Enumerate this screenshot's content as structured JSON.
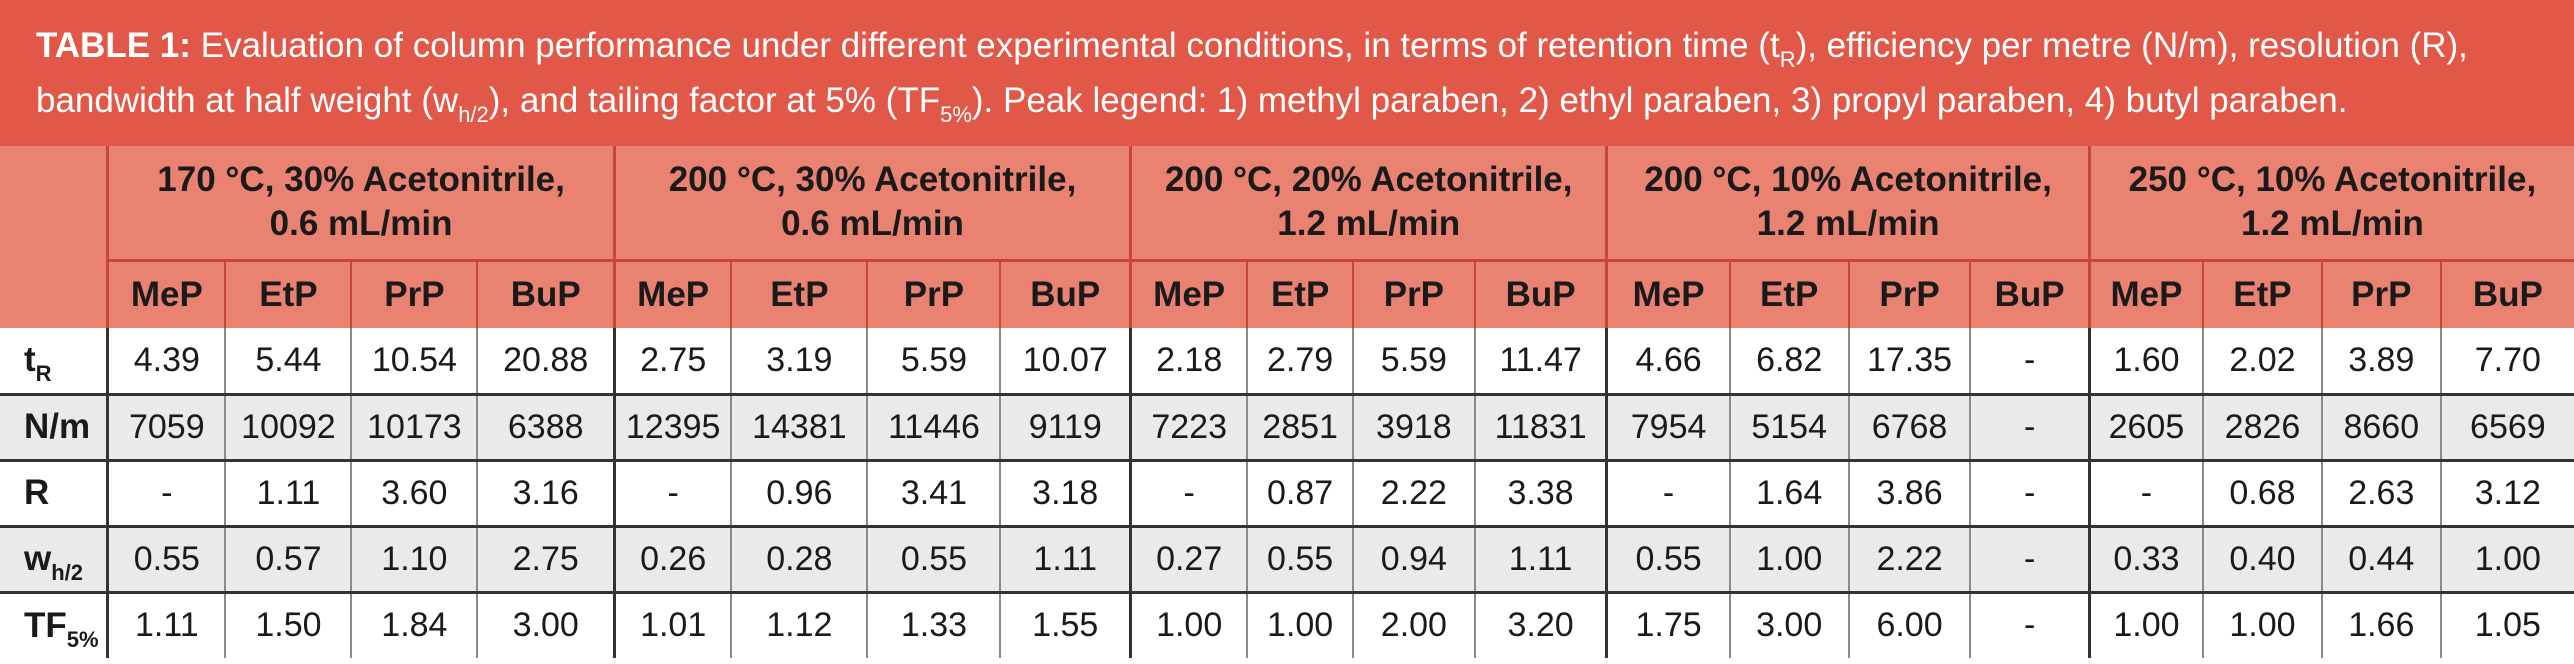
{
  "caption": {
    "label": "TABLE 1:",
    "t1": " Evaluation of column performance under different experimental conditions, in terms of retention time (t",
    "s1": "R",
    "t2": "), efficiency per metre (N/m), resolution (R), bandwidth at half weight (w",
    "s2": "h/2",
    "t3": "), and tailing factor at 5% (TF",
    "s3": "5%",
    "t4": "). Peak legend: 1) methyl paraben, 2) ethyl paraben, 3) propyl paraben, 4) butyl paraben."
  },
  "groups": [
    {
      "line1": "170 °C, 30% Acetonitrile,",
      "line2": "0.6 mL/min"
    },
    {
      "line1": "200 °C, 30% Acetonitrile,",
      "line2": "0.6 mL/min"
    },
    {
      "line1": "200 °C, 20% Acetonitrile,",
      "line2": "1.2 mL/min"
    },
    {
      "line1": "200 °C, 10% Acetonitrile,",
      "line2": "1.2 mL/min"
    },
    {
      "line1": "250 °C, 10% Acetonitrile,",
      "line2": "1.2 mL/min"
    }
  ],
  "subheaders": [
    "MeP",
    "EtP",
    "PrP",
    "BuP"
  ],
  "rows": [
    {
      "label": "t",
      "sub": "R",
      "values": [
        "4.39",
        "5.44",
        "10.54",
        "20.88",
        "2.75",
        "3.19",
        "5.59",
        "10.07",
        "2.18",
        "2.79",
        "5.59",
        "11.47",
        "4.66",
        "6.82",
        "17.35",
        "-",
        "1.60",
        "2.02",
        "3.89",
        "7.70"
      ]
    },
    {
      "label": "N/m",
      "sub": "",
      "values": [
        "7059",
        "10092",
        "10173",
        "6388",
        "12395",
        "14381",
        "11446",
        "9119",
        "7223",
        "2851",
        "3918",
        "11831",
        "7954",
        "5154",
        "6768",
        "-",
        "2605",
        "2826",
        "8660",
        "6569"
      ]
    },
    {
      "label": "R",
      "sub": "",
      "values": [
        "-",
        "1.11",
        "3.60",
        "3.16",
        "-",
        "0.96",
        "3.41",
        "3.18",
        "-",
        "0.87",
        "2.22",
        "3.38",
        "-",
        "1.64",
        "3.86",
        "-",
        "-",
        "0.68",
        "2.63",
        "3.12"
      ]
    },
    {
      "label": "w",
      "sub": "h/2",
      "values": [
        "0.55",
        "0.57",
        "1.10",
        "2.75",
        "0.26",
        "0.28",
        "0.55",
        "1.11",
        "0.27",
        "0.55",
        "0.94",
        "1.11",
        "0.55",
        "1.00",
        "2.22",
        "-",
        "0.33",
        "0.40",
        "0.44",
        "1.00"
      ]
    },
    {
      "label": "TF",
      "sub": "5%",
      "values": [
        "1.11",
        "1.50",
        "1.84",
        "3.00",
        "1.01",
        "1.12",
        "1.33",
        "1.55",
        "1.00",
        "1.00",
        "2.00",
        "3.20",
        "1.75",
        "3.00",
        "6.00",
        "-",
        "1.00",
        "1.00",
        "1.66",
        "1.05"
      ]
    }
  ]
}
